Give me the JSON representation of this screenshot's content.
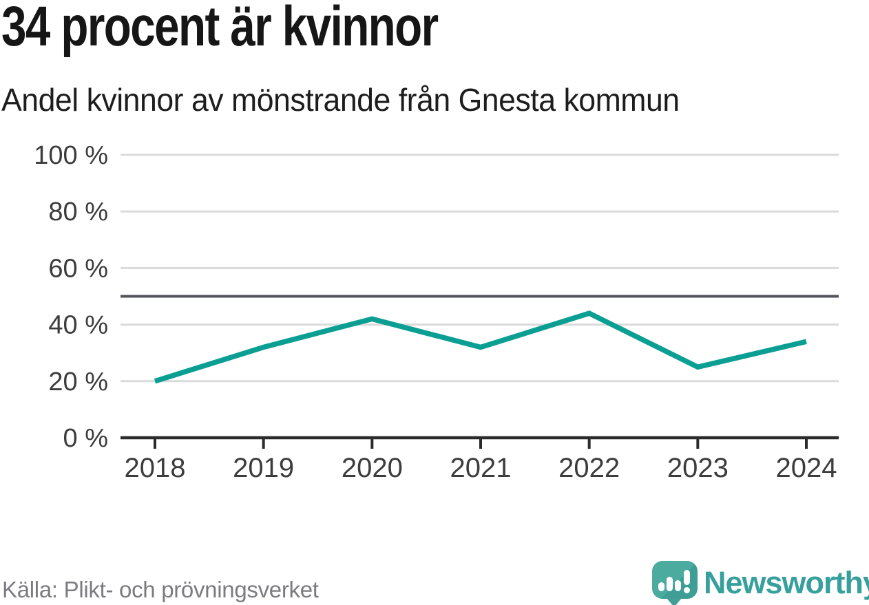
{
  "header": {
    "title": "34 procent är kvinnor",
    "subtitle": "Andel kvinnor av mönstrande från Gnesta kommun"
  },
  "footer": {
    "source": "Källa: Plikt- och prövningsverket",
    "brand": "Newsworthy"
  },
  "colors": {
    "line": "#0b9f94",
    "grid": "#dadada",
    "reference_line": "#53555d",
    "axis": "#2b2b2b",
    "tick_label": "#3c3c3c",
    "logo_teal": "#45a59d",
    "brand_text": "#38a09c",
    "source_text": "#7b7b80",
    "title_text": "#161616"
  },
  "chart_data": {
    "type": "line",
    "title": "34 procent är kvinnor",
    "subtitle": "Andel kvinnor av mönstrande från Gnesta kommun",
    "x": [
      2018,
      2019,
      2020,
      2021,
      2022,
      2023,
      2024
    ],
    "x_labels": [
      "2018",
      "2019",
      "2020",
      "2021",
      "2022",
      "2023",
      "2024"
    ],
    "series": [
      {
        "name": "Andel kvinnor av mönstrande",
        "values": [
          20,
          32,
          42,
          32,
          44,
          25,
          34
        ]
      }
    ],
    "unit": "%",
    "ylim": [
      0,
      100
    ],
    "yticks": [
      0,
      20,
      40,
      60,
      80,
      100
    ],
    "ytick_labels": [
      "0 %",
      "20 %",
      "40 %",
      "60 %",
      "80 %",
      "100 %"
    ],
    "reference_line": 50,
    "grid": true,
    "legend": false,
    "source": "Källa: Plikt- och prövningsverket"
  }
}
